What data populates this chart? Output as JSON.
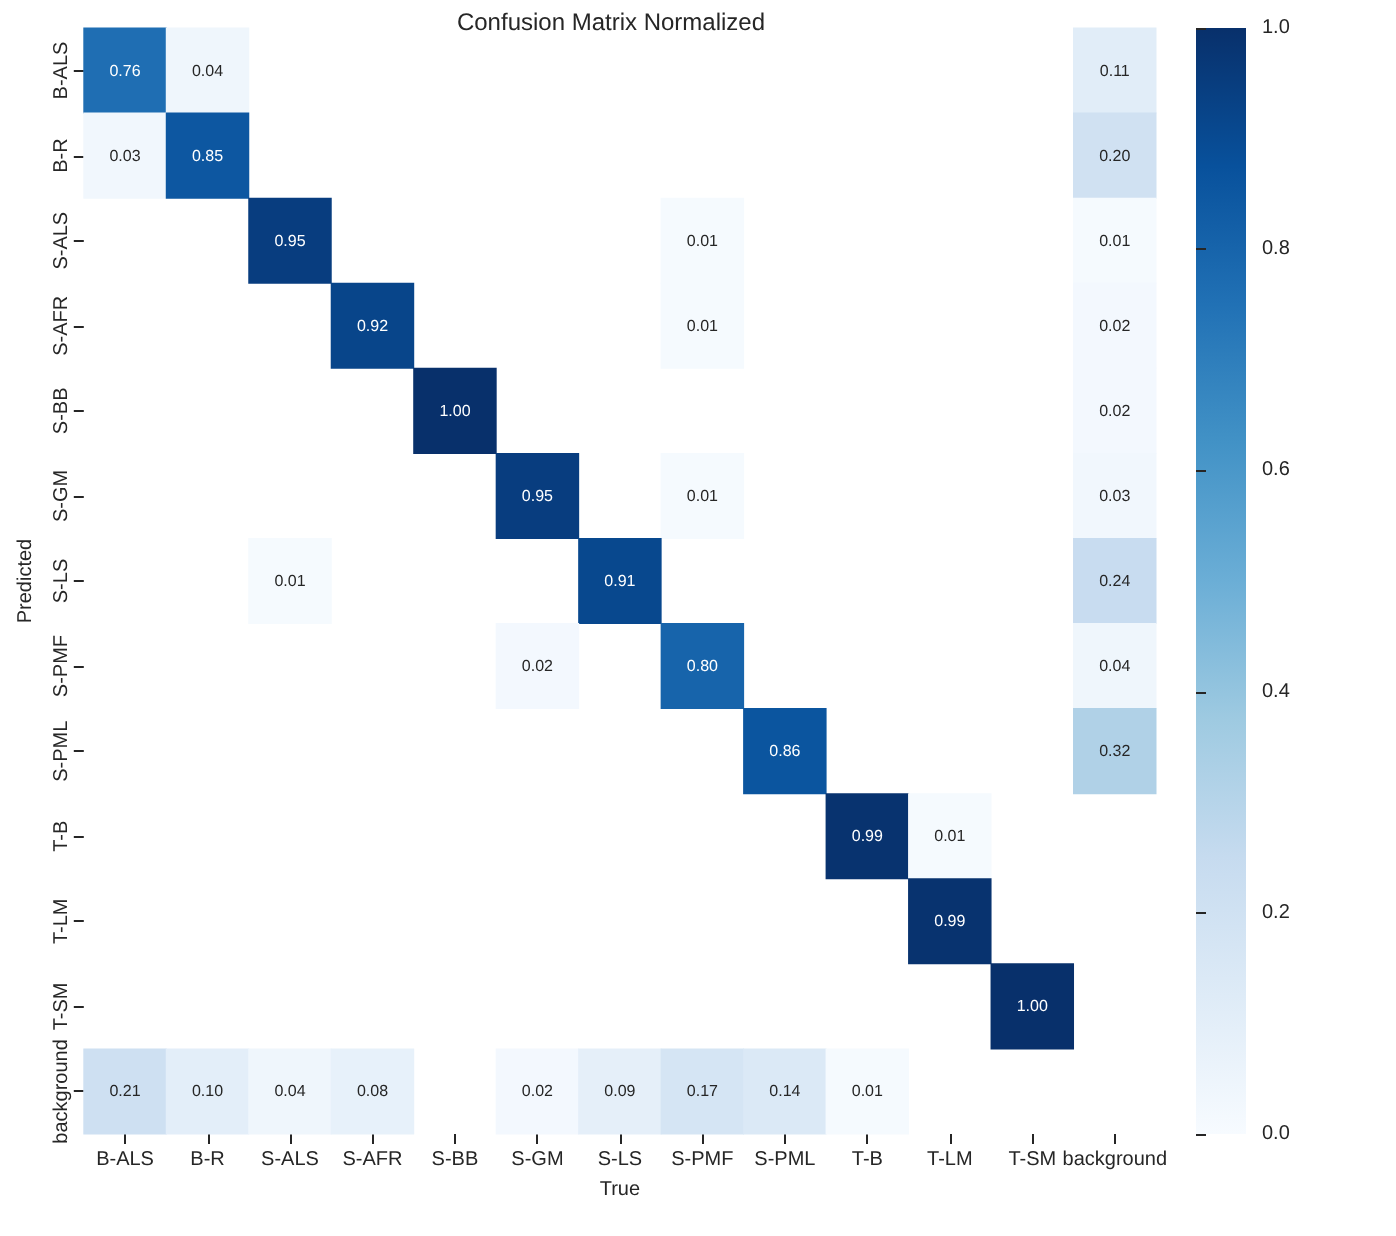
{
  "chart_data": {
    "type": "heatmap",
    "title": "Confusion Matrix Normalized",
    "xlabel": "True",
    "ylabel": "Predicted",
    "categories": [
      "B-ALS",
      "B-R",
      "S-ALS",
      "S-AFR",
      "S-BB",
      "S-GM",
      "S-LS",
      "S-PMF",
      "S-PML",
      "T-B",
      "T-LM",
      "T-SM",
      "background"
    ],
    "y_categories": [
      "B-ALS",
      "B-R",
      "S-ALS",
      "S-AFR",
      "S-BB",
      "S-GM",
      "S-LS",
      "S-PMF",
      "S-PML",
      "T-B",
      "T-LM",
      "T-SM",
      "background"
    ],
    "cells": [
      [
        0.76,
        0.04,
        null,
        null,
        null,
        null,
        null,
        null,
        null,
        null,
        null,
        null,
        0.11
      ],
      [
        0.03,
        0.85,
        null,
        null,
        null,
        null,
        null,
        null,
        null,
        null,
        null,
        null,
        0.2
      ],
      [
        null,
        null,
        0.95,
        null,
        null,
        null,
        null,
        0.01,
        null,
        null,
        null,
        null,
        0.01
      ],
      [
        null,
        null,
        null,
        0.92,
        null,
        null,
        null,
        0.01,
        null,
        null,
        null,
        null,
        0.02
      ],
      [
        null,
        null,
        null,
        null,
        1.0,
        null,
        null,
        null,
        null,
        null,
        null,
        null,
        0.02
      ],
      [
        null,
        null,
        null,
        null,
        null,
        0.95,
        null,
        0.01,
        null,
        null,
        null,
        null,
        0.03
      ],
      [
        null,
        null,
        0.01,
        null,
        null,
        null,
        0.91,
        null,
        null,
        null,
        null,
        null,
        0.24
      ],
      [
        null,
        null,
        null,
        null,
        null,
        0.02,
        null,
        0.8,
        null,
        null,
        null,
        null,
        0.04
      ],
      [
        null,
        null,
        null,
        null,
        null,
        null,
        null,
        null,
        0.86,
        null,
        null,
        null,
        0.32
      ],
      [
        null,
        null,
        null,
        null,
        null,
        null,
        null,
        null,
        null,
        0.99,
        0.01,
        null,
        null
      ],
      [
        null,
        null,
        null,
        null,
        null,
        null,
        null,
        null,
        null,
        null,
        0.99,
        null,
        null
      ],
      [
        null,
        null,
        null,
        null,
        null,
        null,
        null,
        null,
        null,
        null,
        null,
        1.0,
        null
      ],
      [
        0.21,
        0.1,
        0.04,
        0.08,
        null,
        0.02,
        0.09,
        0.17,
        0.14,
        0.01,
        null,
        null,
        null
      ]
    ],
    "cell_labels": [
      [
        "0.76",
        "0.04",
        null,
        null,
        null,
        null,
        null,
        null,
        null,
        null,
        null,
        null,
        "0.11"
      ],
      [
        "0.03",
        "0.85",
        null,
        null,
        null,
        null,
        null,
        null,
        null,
        null,
        null,
        null,
        "0.20"
      ],
      [
        null,
        null,
        "0.95",
        null,
        null,
        null,
        null,
        "0.01",
        null,
        null,
        null,
        null,
        "0.01"
      ],
      [
        null,
        null,
        null,
        "0.92",
        null,
        null,
        null,
        "0.01",
        null,
        null,
        null,
        null,
        "0.02"
      ],
      [
        null,
        null,
        null,
        null,
        "1.00",
        null,
        null,
        null,
        null,
        null,
        null,
        null,
        "0.02"
      ],
      [
        null,
        null,
        null,
        null,
        null,
        "0.95",
        null,
        "0.01",
        null,
        null,
        null,
        null,
        "0.03"
      ],
      [
        null,
        null,
        "0.01",
        null,
        null,
        null,
        "0.91",
        null,
        null,
        null,
        null,
        null,
        "0.24"
      ],
      [
        null,
        null,
        null,
        null,
        null,
        "0.02",
        null,
        "0.80",
        null,
        null,
        null,
        null,
        "0.04"
      ],
      [
        null,
        null,
        null,
        null,
        null,
        null,
        null,
        null,
        "0.86",
        null,
        null,
        null,
        "0.32"
      ],
      [
        null,
        null,
        null,
        null,
        null,
        null,
        null,
        null,
        null,
        "0.99",
        "0.01",
        null,
        null
      ],
      [
        null,
        null,
        null,
        null,
        null,
        null,
        null,
        null,
        null,
        null,
        "0.99",
        null,
        null
      ],
      [
        null,
        null,
        null,
        null,
        null,
        null,
        null,
        null,
        null,
        null,
        null,
        "1.00",
        null
      ],
      [
        "0.21",
        "0.10",
        "0.04",
        "0.08",
        null,
        "0.02",
        "0.09",
        "0.17",
        "0.14",
        "0.01",
        null,
        null,
        null
      ]
    ],
    "clim": [
      0,
      1
    ],
    "cticks": [
      {
        "value": 0,
        "label": "0.0"
      },
      {
        "value": 0.2,
        "label": "0.2"
      },
      {
        "value": 0.4,
        "label": "0.4"
      },
      {
        "value": 0.6,
        "label": "0.6"
      },
      {
        "value": 0.8,
        "label": "0.8"
      },
      {
        "value": 1,
        "label": "1.0"
      }
    ]
  }
}
